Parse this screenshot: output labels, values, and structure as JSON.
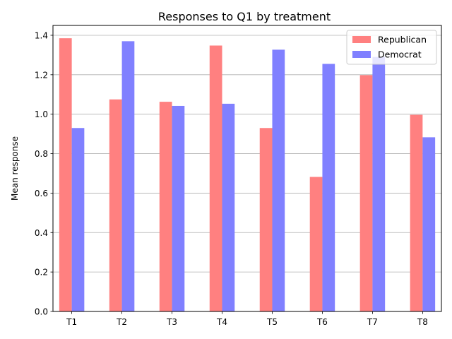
{
  "chart_data": {
    "type": "bar",
    "title": "Responses to Q1 by treatment",
    "xlabel": "",
    "ylabel": "Mean response",
    "categories": [
      "T1",
      "T2",
      "T3",
      "T4",
      "T5",
      "T6",
      "T7",
      "T8"
    ],
    "series": [
      {
        "name": "Republican",
        "color": "#ff8080",
        "values": [
          1.385,
          1.075,
          1.063,
          1.348,
          0.93,
          0.682,
          1.198,
          0.997
        ]
      },
      {
        "name": "Democrat",
        "color": "#8080ff",
        "values": [
          0.93,
          1.37,
          1.042,
          1.053,
          1.327,
          1.255,
          1.29,
          0.883
        ]
      }
    ],
    "ylim": [
      0,
      1.45
    ],
    "yticks": [
      "0.0",
      "0.2",
      "0.4",
      "0.6",
      "0.8",
      "1.0",
      "1.2",
      "1.4"
    ],
    "grid": "y",
    "legend_position": "top-right"
  }
}
